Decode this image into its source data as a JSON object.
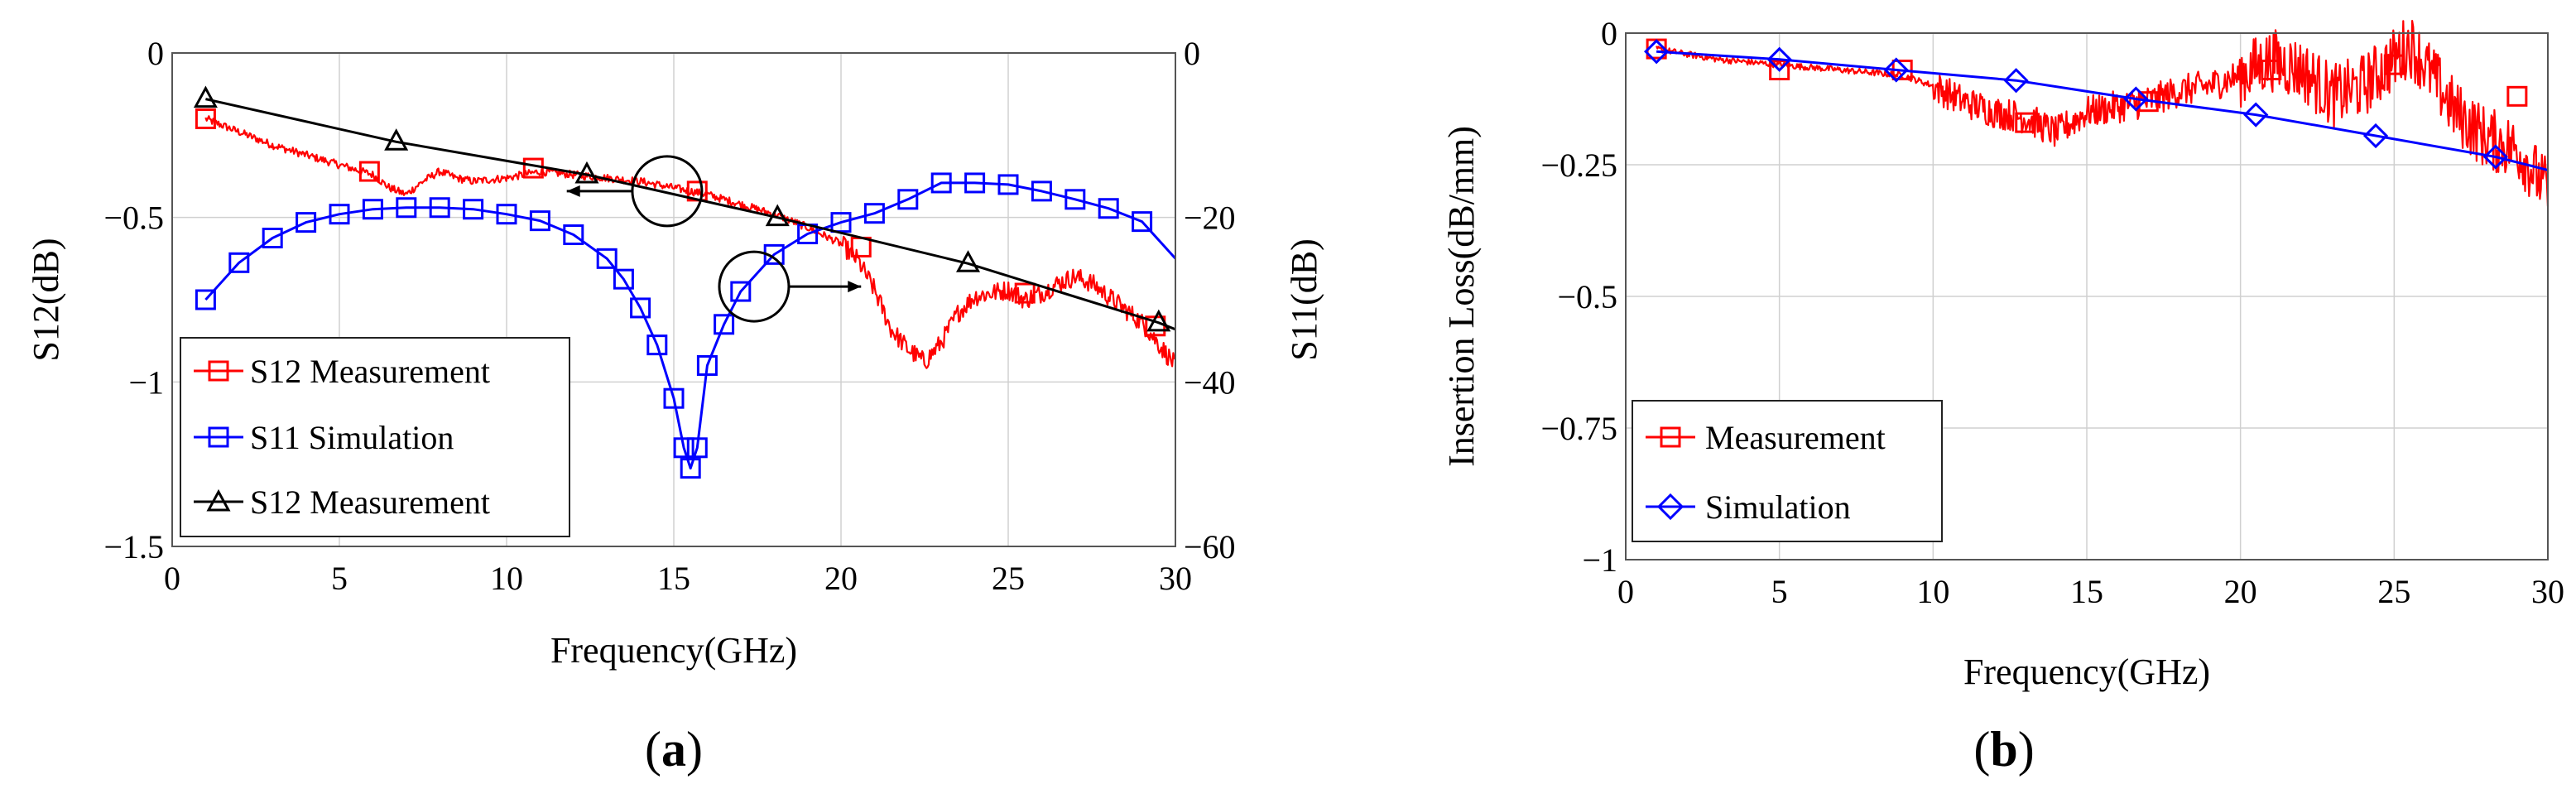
{
  "chart_data": [
    {
      "panel_label": "a",
      "type": "line",
      "xlabel": "Frequency(GHz)",
      "ylabel": "S12(dB)",
      "y2label": "S11(dB)",
      "xlim": [
        0,
        30
      ],
      "ylim": [
        -1.5,
        0
      ],
      "y2lim": [
        -60,
        0
      ],
      "xticks": [
        0,
        5,
        10,
        15,
        20,
        25,
        30
      ],
      "yticks": [
        0,
        -0.5,
        -1,
        -1.5
      ],
      "y2ticks": [
        0,
        -20,
        -40,
        -60
      ],
      "xtick_labels": [
        "0",
        "5",
        "10",
        "15",
        "20",
        "25",
        "30"
      ],
      "ytick_labels": [
        "0",
        "−0.5",
        "−1",
        "−1.5"
      ],
      "y2tick_labels": [
        "0",
        "−20",
        "−40",
        "−60"
      ],
      "grid": true,
      "legend_position": "lower-left",
      "series": [
        {
          "name": "S12 Measurement",
          "color": "#ff0000",
          "marker": "square",
          "axis": "left",
          "noisy": true,
          "x": [
            1,
            2,
            3,
            4,
            5,
            6,
            6.5,
            7,
            7.5,
            8,
            8.5,
            9,
            10,
            11,
            12,
            13,
            14,
            15,
            16,
            17,
            18,
            19,
            20,
            20.5,
            21,
            21.5,
            22,
            22.5,
            23,
            23.5,
            24,
            25,
            25.5,
            26,
            26.5,
            27,
            27.5,
            28,
            29,
            30
          ],
          "values": [
            -0.2,
            -0.24,
            -0.28,
            -0.31,
            -0.34,
            -0.37,
            -0.41,
            -0.43,
            -0.39,
            -0.36,
            -0.38,
            -0.39,
            -0.38,
            -0.36,
            -0.37,
            -0.38,
            -0.39,
            -0.41,
            -0.43,
            -0.46,
            -0.49,
            -0.53,
            -0.58,
            -0.63,
            -0.72,
            -0.84,
            -0.9,
            -0.94,
            -0.88,
            -0.79,
            -0.74,
            -0.72,
            -0.75,
            -0.73,
            -0.7,
            -0.68,
            -0.7,
            -0.74,
            -0.82,
            -0.95
          ],
          "marker_x": [
            1,
            5.9,
            10.8,
            15.7,
            20.6,
            25.5,
            29.4
          ],
          "marker_values": [
            -0.2,
            -0.36,
            -0.35,
            -0.42,
            -0.59,
            -0.73,
            -0.83
          ]
        },
        {
          "name": "S11 Simulation",
          "color": "#0000ff",
          "marker": "square",
          "axis": "right",
          "x": [
            1,
            2,
            3,
            4,
            5,
            6,
            7,
            8,
            9,
            10,
            11,
            12,
            13,
            13.5,
            14,
            14.5,
            15,
            15.3,
            15.5,
            15.7,
            16,
            16.5,
            17,
            18,
            19,
            20,
            21,
            22,
            23,
            24,
            25,
            26,
            27,
            28,
            29,
            30
          ],
          "values": [
            -30,
            -25.5,
            -22.5,
            -20.6,
            -19.6,
            -19,
            -18.8,
            -18.8,
            -19,
            -19.6,
            -20.4,
            -22.1,
            -25,
            -27.5,
            -31,
            -35.5,
            -42,
            -48,
            -50.5,
            -48,
            -38,
            -33,
            -29,
            -24.5,
            -22,
            -20.6,
            -19.5,
            -17.8,
            -15.8,
            -15.8,
            -16,
            -16.8,
            -17.8,
            -18.9,
            -20.5,
            -25
          ]
        },
        {
          "name": "S12 Measurement",
          "color": "#000000",
          "marker": "triangle",
          "axis": "left",
          "x": [
            1,
            6.7,
            12.4,
            18.1,
            23.8,
            29.5,
            30
          ],
          "values": [
            -0.14,
            -0.27,
            -0.37,
            -0.5,
            -0.64,
            -0.82,
            -0.84
          ]
        }
      ],
      "annotations": [
        {
          "type": "circle-arrow",
          "target_axis": "left",
          "center": [
            14.8,
            -0.42
          ],
          "arrow_to": [
            11.8,
            -0.42
          ]
        },
        {
          "type": "circle-arrow",
          "target_axis": "right",
          "center": [
            17.4,
            -0.71
          ],
          "arrow_to": [
            20.6,
            -0.71
          ]
        }
      ]
    },
    {
      "panel_label": "b",
      "type": "line",
      "xlabel": "Frequency(GHz)",
      "ylabel": "Insertion Loss(dB/mm)",
      "xlim": [
        0,
        30
      ],
      "ylim": [
        -1,
        0
      ],
      "xticks": [
        0,
        5,
        10,
        15,
        20,
        25,
        30
      ],
      "yticks": [
        0,
        -0.25,
        -0.5,
        -0.75,
        -1
      ],
      "xtick_labels": [
        "0",
        "5",
        "10",
        "15",
        "20",
        "25",
        "30"
      ],
      "ytick_labels": [
        "0",
        "−0.25",
        "−0.5",
        "−0.75",
        "−1"
      ],
      "grid": true,
      "legend_position": "lower-left",
      "series": [
        {
          "name": "Measurement",
          "color": "#ff0000",
          "marker": "square",
          "noisy": true,
          "x": [
            1,
            3,
            5,
            7,
            9,
            10,
            11,
            12,
            13,
            14,
            15,
            16,
            17,
            18,
            19,
            20,
            21,
            22,
            23,
            24,
            25,
            25.5,
            26,
            27,
            28,
            29,
            30
          ],
          "values": [
            -0.03,
            -0.05,
            -0.06,
            -0.07,
            -0.08,
            -0.1,
            -0.13,
            -0.15,
            -0.16,
            -0.19,
            -0.15,
            -0.14,
            -0.13,
            -0.11,
            -0.1,
            -0.08,
            -0.05,
            -0.07,
            -0.12,
            -0.1,
            -0.05,
            -0.02,
            -0.06,
            -0.15,
            -0.2,
            -0.22,
            -0.3
          ],
          "marker_x": [
            1,
            5,
            9,
            13,
            17,
            21,
            25,
            29
          ],
          "marker_values": [
            -0.03,
            -0.07,
            -0.07,
            -0.17,
            -0.13,
            -0.07,
            -0.06,
            -0.12
          ]
        },
        {
          "name": "Simulation",
          "color": "#0000ff",
          "marker": "diamond",
          "x": [
            1,
            5,
            8.8,
            12.7,
            16.6,
            20.5,
            24.4,
            28.3,
            30
          ],
          "values": [
            -0.035,
            -0.05,
            -0.07,
            -0.09,
            -0.125,
            -0.155,
            -0.195,
            -0.235,
            -0.26
          ]
        }
      ]
    }
  ]
}
